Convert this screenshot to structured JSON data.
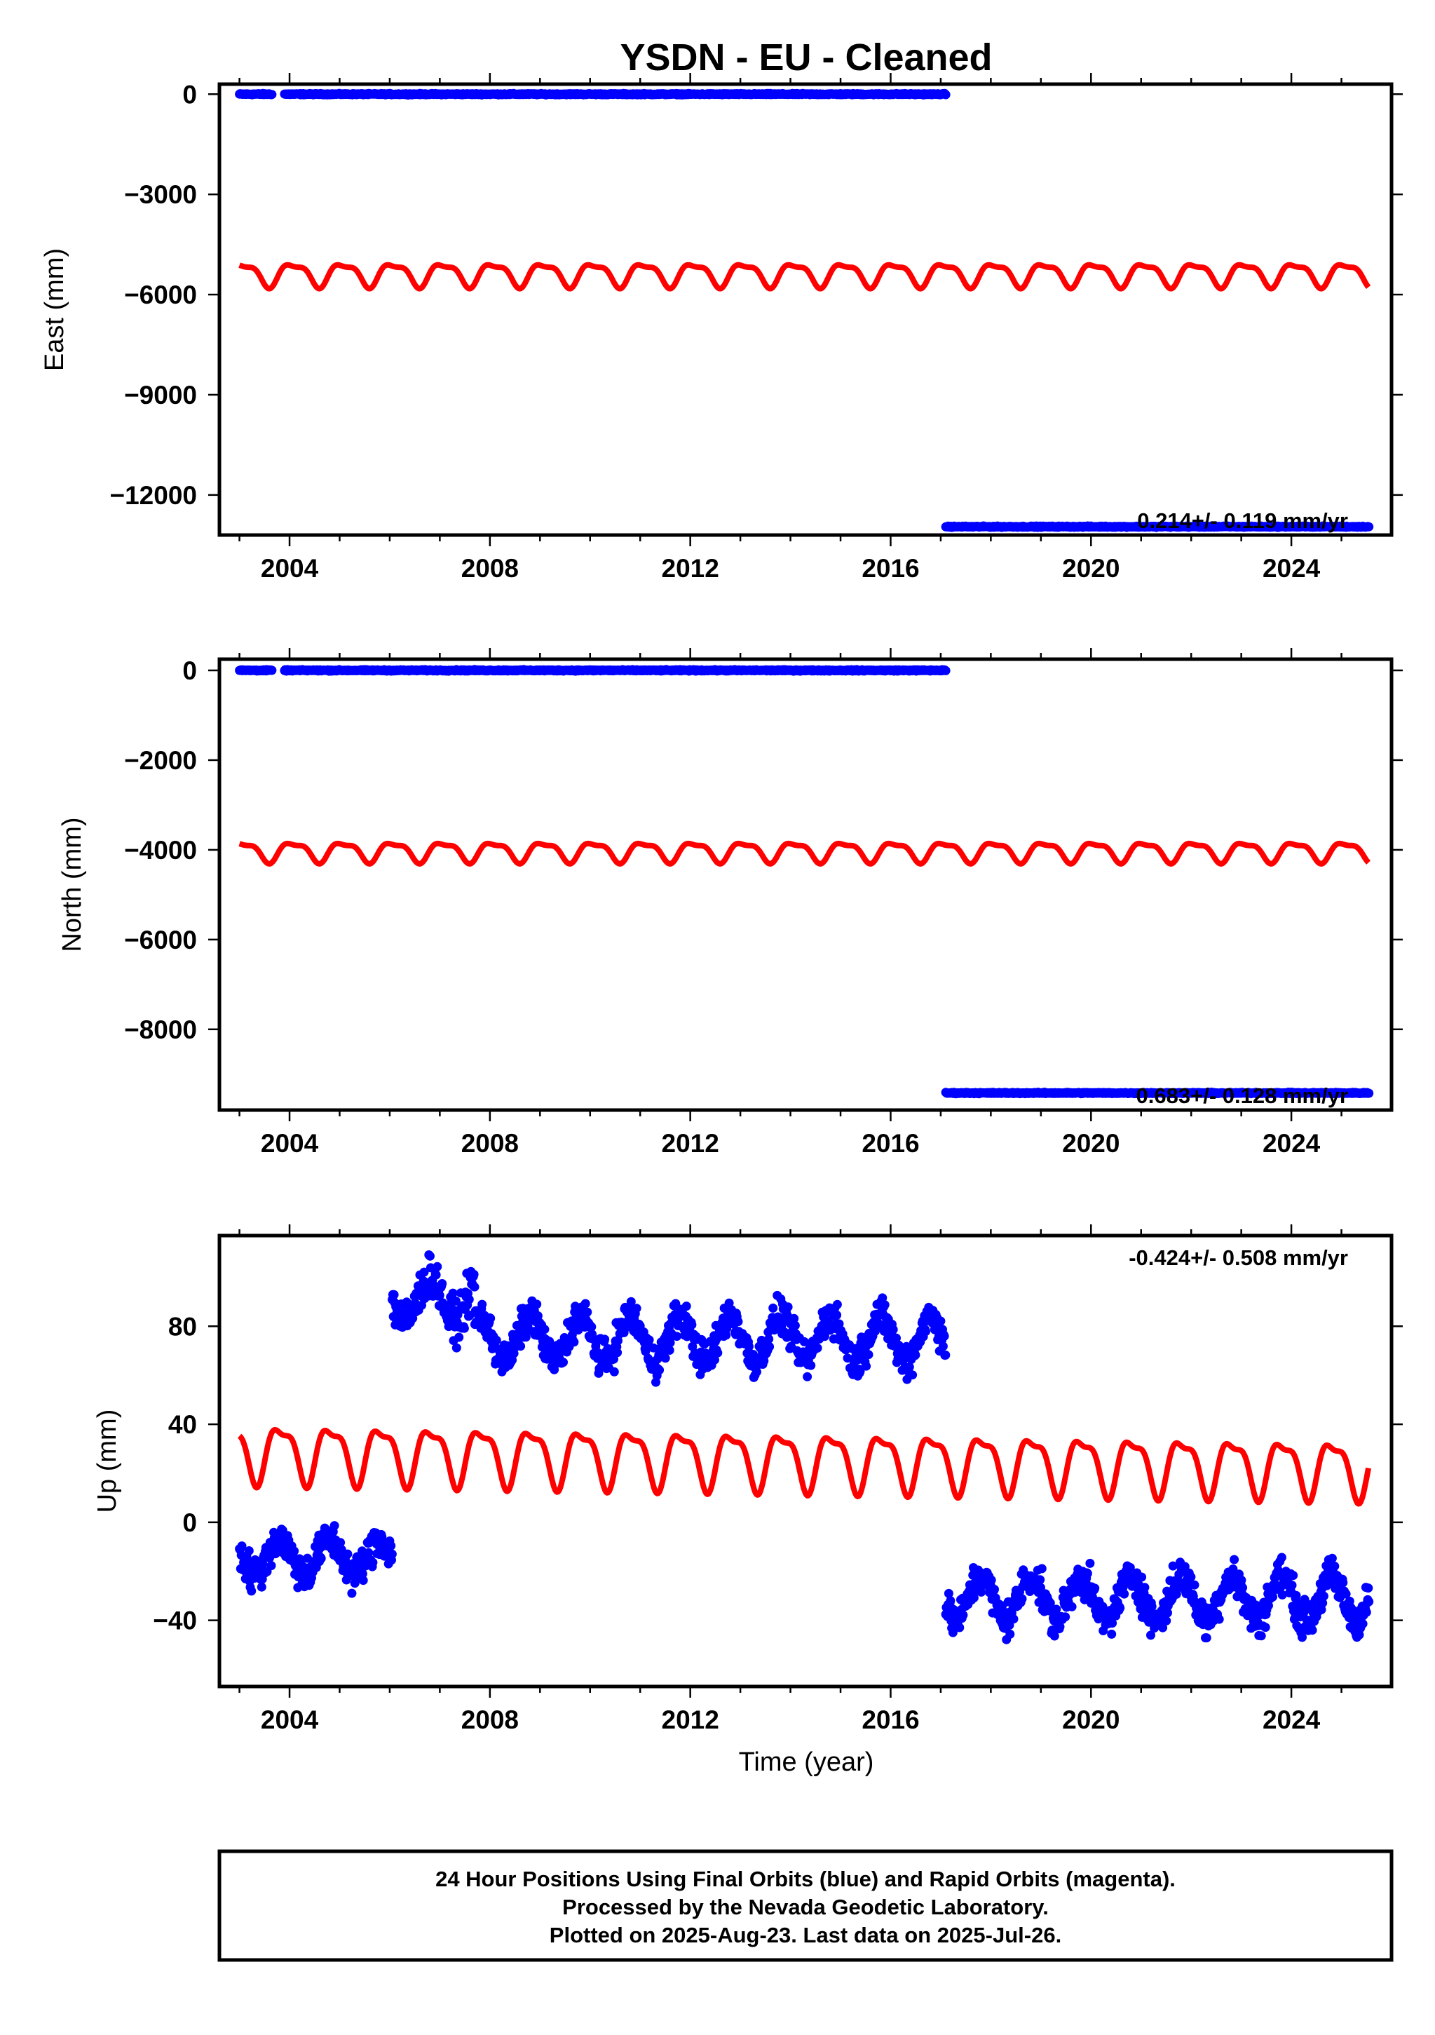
{
  "title": "YSDN  - EU - Cleaned",
  "xlabel": "Time (year)",
  "footer_lines": [
    "24 Hour Positions Using Final Orbits (blue) and Rapid Orbits (magenta).",
    "Processed by the Nevada Geodetic Laboratory.",
    "Plotted on 2025-Aug-23. Last data on 2025-Jul-26."
  ],
  "colors": {
    "data": "#0000ff",
    "model": "#ff0000",
    "frame": "#000000"
  },
  "chart_data": [
    {
      "type": "scatter",
      "panel": "east",
      "ylabel": "East (mm)",
      "rate_label": "0.214+/- 0.119 mm/yr",
      "xlim": [
        2002.6,
        2026.0
      ],
      "ylim": [
        -13200,
        300
      ],
      "x_ticks": [
        2004,
        2008,
        2012,
        2016,
        2020,
        2024
      ],
      "y_ticks": [
        0,
        -3000,
        -6000,
        -9000,
        -12000
      ],
      "y_tick_labels": [
        "0",
        "−3000",
        "−6000",
        "−9000",
        "−12000"
      ],
      "data_segments": [
        {
          "x_start": 2003.0,
          "x_end": 2003.65,
          "y": 0,
          "noise": 15
        },
        {
          "x_start": 2003.9,
          "x_end": 2017.1,
          "y": 0,
          "noise": 15
        },
        {
          "x_start": 2017.1,
          "x_end": 2025.55,
          "y": -12950,
          "noise": 15
        }
      ],
      "model": {
        "x_start": 2003.0,
        "x_end": 2025.55,
        "mean": -5380,
        "trend_per_year": 0,
        "amplitude": 330,
        "phase_year": 0.83
      }
    },
    {
      "type": "scatter",
      "panel": "north",
      "ylabel": "North (mm)",
      "rate_label": "0.683+/- 0.128 mm/yr",
      "xlim": [
        2002.6,
        2026.0
      ],
      "ylim": [
        -9800,
        250
      ],
      "x_ticks": [
        2004,
        2008,
        2012,
        2016,
        2020,
        2024
      ],
      "y_ticks": [
        0,
        -2000,
        -4000,
        -6000,
        -8000
      ],
      "y_tick_labels": [
        "0",
        "−2000",
        "−4000",
        "−6000",
        "−8000"
      ],
      "data_segments": [
        {
          "x_start": 2003.0,
          "x_end": 2003.65,
          "y": 0,
          "noise": 12
        },
        {
          "x_start": 2003.9,
          "x_end": 2017.1,
          "y": 0,
          "noise": 12
        },
        {
          "x_start": 2017.1,
          "x_end": 2025.55,
          "y": -9420,
          "noise": 12
        }
      ],
      "model": {
        "x_start": 2003.0,
        "x_end": 2025.55,
        "mean": -4030,
        "trend_per_year": 0,
        "amplitude": 210,
        "phase_year": 0.83
      }
    },
    {
      "type": "scatter",
      "panel": "up",
      "ylabel": "Up (mm)",
      "rate_label": "-0.424+/- 0.508 mm/yr",
      "xlim": [
        2002.6,
        2026.0
      ],
      "ylim": [
        -67,
        117
      ],
      "x_ticks": [
        2004,
        2008,
        2012,
        2016,
        2020,
        2024
      ],
      "y_ticks": [
        80,
        40,
        0,
        -40
      ],
      "y_tick_labels": [
        "80",
        "40",
        "0",
        "−40"
      ],
      "data_segments": [
        {
          "x_start": 2003.0,
          "x_end": 2006.05,
          "y": -14,
          "seasonal": 7,
          "noise": 6
        },
        {
          "x_start": 2006.05,
          "x_end": 2007.7,
          "y": 91,
          "seasonal": 9,
          "noise": 7
        },
        {
          "x_start": 2007.7,
          "x_end": 2017.1,
          "y": 75,
          "seasonal": 9,
          "noise": 6
        },
        {
          "x_start": 2017.1,
          "x_end": 2025.55,
          "y": -31,
          "seasonal": 9,
          "noise": 6
        }
      ],
      "model": {
        "x_start": 2003.0,
        "x_end": 2025.55,
        "mean": 29,
        "trend_per_year": -0.3,
        "amplitude": 11,
        "phase_year": 0.58
      }
    }
  ]
}
